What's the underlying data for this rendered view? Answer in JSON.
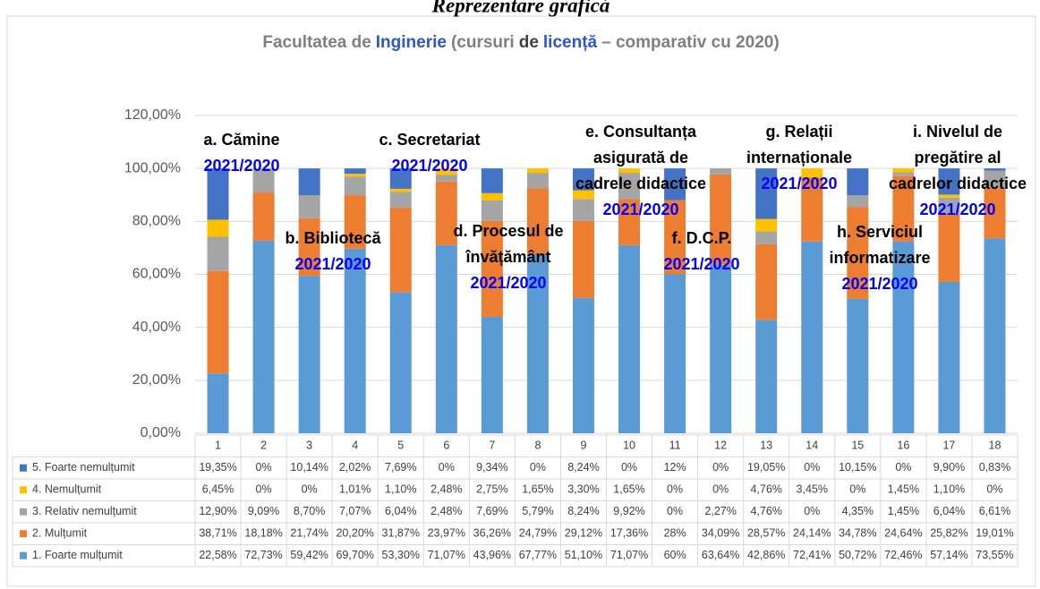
{
  "page_heading": "Reprezentare grafică",
  "chart_data": {
    "type": "bar",
    "stacked": true,
    "title_parts": [
      {
        "text": "Facultatea de",
        "color": "#7f7f7f"
      },
      {
        "text": "Inginerie",
        "color": "#2e54d6"
      },
      {
        "text": "(cursuri",
        "color": "#7f7f7f"
      },
      {
        "text": "de",
        "color": "#404040"
      },
      {
        "text": "licență",
        "color": "#2e54d6"
      },
      {
        "text": "– comparativ cu 2020)",
        "color": "#7f7f7f"
      }
    ],
    "categories": [
      "1",
      "2",
      "3",
      "4",
      "5",
      "6",
      "7",
      "8",
      "9",
      "10",
      "11",
      "12",
      "13",
      "14",
      "15",
      "16",
      "17",
      "18"
    ],
    "series": [
      {
        "name": "1. Foarte mulțumit",
        "color": "#5b9bd5",
        "values": [
          22.58,
          72.73,
          59.42,
          69.7,
          53.3,
          71.07,
          43.96,
          67.77,
          51.1,
          71.07,
          60,
          63.64,
          42.86,
          72.41,
          50.72,
          72.46,
          57.14,
          73.55
        ],
        "value_labels": [
          "22,58%",
          "72,73%",
          "59,42%",
          "69,70%",
          "53,30%",
          "71,07%",
          "43,96%",
          "67,77%",
          "51,10%",
          "71,07%",
          "60%",
          "63,64%",
          "42,86%",
          "72,41%",
          "50,72%",
          "72,46%",
          "57,14%",
          "73,55%"
        ]
      },
      {
        "name": "2. Mulțumit",
        "color": "#ed7d31",
        "values": [
          38.71,
          18.18,
          21.74,
          20.2,
          31.87,
          23.97,
          36.26,
          24.79,
          29.12,
          17.36,
          28,
          34.09,
          28.57,
          24.14,
          34.78,
          24.64,
          25.82,
          19.01
        ],
        "value_labels": [
          "38,71%",
          "18,18%",
          "21,74%",
          "20,20%",
          "31,87%",
          "23,97%",
          "36,26%",
          "24,79%",
          "29,12%",
          "17,36%",
          "28%",
          "34,09%",
          "28,57%",
          "24,14%",
          "34,78%",
          "24,64%",
          "25,82%",
          "19,01%"
        ]
      },
      {
        "name": "3. Relativ nemulțumit",
        "color": "#a5a5a5",
        "values": [
          12.9,
          9.09,
          8.7,
          7.07,
          6.04,
          2.48,
          7.69,
          5.79,
          8.24,
          9.92,
          0,
          2.27,
          4.76,
          0,
          4.35,
          1.45,
          6.04,
          6.61
        ],
        "value_labels": [
          "12,90%",
          "9,09%",
          "8,70%",
          "7,07%",
          "6,04%",
          "2,48%",
          "7,69%",
          "5,79%",
          "8,24%",
          "9,92%",
          "0%",
          "2,27%",
          "4,76%",
          "0%",
          "4,35%",
          "1,45%",
          "6,04%",
          "6,61%"
        ]
      },
      {
        "name": "4. Nemulțumit",
        "color": "#ffc000",
        "values": [
          6.45,
          0,
          0,
          1.01,
          1.1,
          2.48,
          2.75,
          1.65,
          3.3,
          1.65,
          0,
          0,
          4.76,
          3.45,
          0,
          1.45,
          1.1,
          0
        ],
        "value_labels": [
          "6,45%",
          "0%",
          "0%",
          "1,01%",
          "1,10%",
          "2,48%",
          "2,75%",
          "1,65%",
          "3,30%",
          "1,65%",
          "0%",
          "0%",
          "4,76%",
          "3,45%",
          "0%",
          "1,45%",
          "1,10%",
          "0%"
        ]
      },
      {
        "name": "5. Foarte nemulțumit",
        "color": "#4472c4",
        "values": [
          19.35,
          0,
          10.14,
          2.02,
          7.69,
          0,
          9.34,
          0,
          8.24,
          0,
          12,
          0,
          19.05,
          0,
          10.15,
          0,
          9.9,
          0.83
        ],
        "value_labels": [
          "19,35%",
          "0%",
          "10,14%",
          "2,02%",
          "7,69%",
          "0%",
          "9,34%",
          "0%",
          "8,24%",
          "0%",
          "12%",
          "0%",
          "19,05%",
          "0%",
          "10,15%",
          "0%",
          "9,90%",
          "0,83%"
        ]
      }
    ],
    "ylim": [
      0,
      120
    ],
    "yticks": [
      {
        "value": 0,
        "label": "0,00%"
      },
      {
        "value": 20,
        "label": "20,00%"
      },
      {
        "value": 40,
        "label": "40,00%"
      },
      {
        "value": 60,
        "label": "60,00%"
      },
      {
        "value": 80,
        "label": "80,00%"
      },
      {
        "value": 100,
        "label": "100,00%"
      },
      {
        "value": 120,
        "label": "120,00%"
      }
    ],
    "grid": true,
    "data_table": true,
    "annotations": [
      {
        "lines": [
          "a. Cămine"
        ],
        "sub": "2021/2020"
      },
      {
        "lines": [
          "b. Bibliotecă"
        ],
        "sub": "2021/2020"
      },
      {
        "lines": [
          "c. Secretariat"
        ],
        "sub": "2021/2020"
      },
      {
        "lines": [
          "d. Procesul de",
          "învățământ"
        ],
        "sub": "2021/2020"
      },
      {
        "lines": [
          "e. Consultanța",
          "asigurată de",
          "cadrele didactice"
        ],
        "sub": "2021/2020"
      },
      {
        "lines": [
          "f. D.C.P."
        ],
        "sub": "2021/2020"
      },
      {
        "lines": [
          "g. Relații",
          "internaționale"
        ],
        "sub": "2021/2020"
      },
      {
        "lines": [
          "h. Serviciul",
          "informatizare"
        ],
        "sub": "2021/2020"
      },
      {
        "lines": [
          "i. Nivelul de",
          "pregătire al",
          "cadrelor didactice"
        ],
        "sub": "2021/2020"
      }
    ]
  }
}
